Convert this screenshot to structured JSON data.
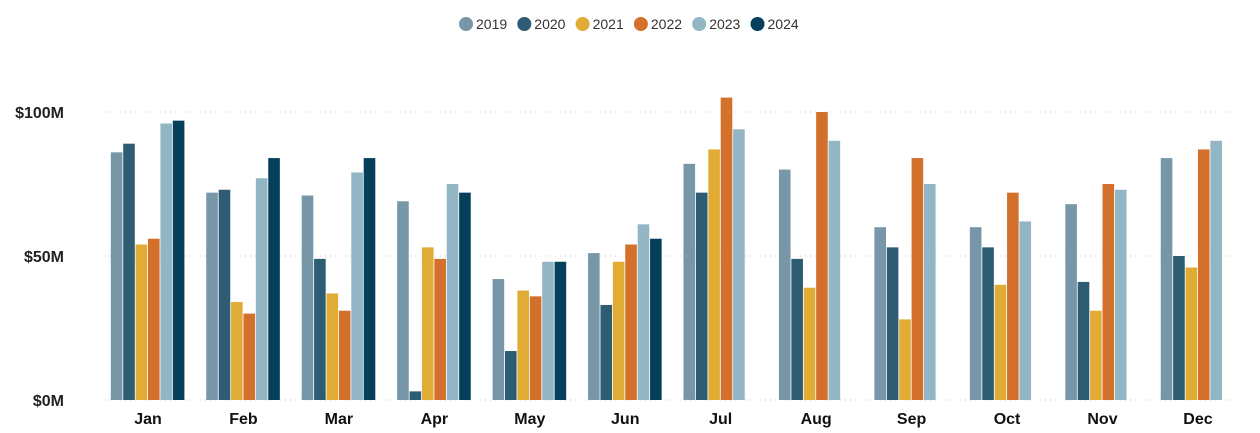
{
  "chart_data": {
    "type": "bar",
    "categories": [
      "Jan",
      "Feb",
      "Mar",
      "Apr",
      "May",
      "Jun",
      "Jul",
      "Aug",
      "Sep",
      "Oct",
      "Nov",
      "Dec"
    ],
    "series": [
      {
        "name": "2019",
        "color": "#7797A8",
        "values": [
          86,
          72,
          71,
          69,
          42,
          51,
          82,
          80,
          60,
          60,
          68,
          84
        ]
      },
      {
        "name": "2020",
        "color": "#2E5C72",
        "values": [
          89,
          73,
          49,
          3,
          17,
          33,
          72,
          49,
          53,
          53,
          41,
          50
        ]
      },
      {
        "name": "2021",
        "color": "#E1AC35",
        "values": [
          54,
          34,
          37,
          53,
          38,
          48,
          87,
          39,
          28,
          40,
          31,
          46
        ]
      },
      {
        "name": "2022",
        "color": "#D3712C",
        "values": [
          56,
          30,
          31,
          49,
          36,
          54,
          105,
          100,
          84,
          72,
          75,
          87
        ]
      },
      {
        "name": "2023",
        "color": "#92B6C3",
        "values": [
          96,
          77,
          79,
          75,
          48,
          61,
          94,
          90,
          75,
          62,
          73,
          90
        ]
      },
      {
        "name": "2024",
        "color": "#063F5A",
        "values": [
          97,
          84,
          84,
          72,
          48,
          56,
          null,
          null,
          null,
          null,
          null,
          null
        ]
      }
    ],
    "yticks": [
      {
        "value": 0,
        "label": "$0M"
      },
      {
        "value": 50,
        "label": "$50M"
      },
      {
        "value": 100,
        "label": "$100M"
      }
    ],
    "ylim": [
      0,
      110
    ],
    "title": "",
    "xlabel": "",
    "ylabel": "",
    "legend_position": "top-center",
    "grid": true
  }
}
